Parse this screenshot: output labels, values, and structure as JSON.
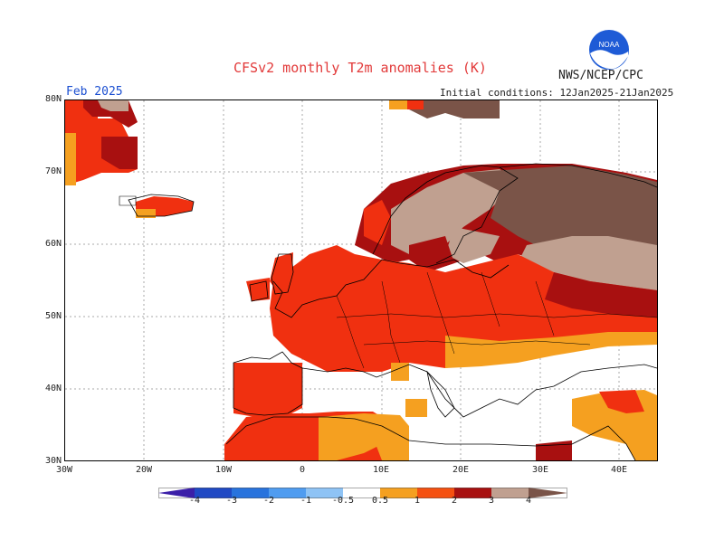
{
  "title": "CFSv2 monthly T2m anomalies (K)",
  "agency": "NWS/NCEP/CPC",
  "month": "Feb 2025",
  "initial_conditions": "Initial conditions: 12Jan2025-21Jan2025",
  "logo_text": "NOAA",
  "axes": {
    "lat_labels": [
      "80N",
      "70N",
      "60N",
      "50N",
      "40N",
      "30N"
    ],
    "lon_labels": [
      "30W",
      "20W",
      "10W",
      "0",
      "10E",
      "20E",
      "30E",
      "40E"
    ]
  },
  "colorbar": {
    "labels": [
      "-4",
      "-3",
      "-2",
      "-1",
      "-0.5",
      "0.5",
      "1",
      "2",
      "3",
      "4"
    ],
    "colors": [
      "#3b1fa8",
      "#2049c4",
      "#2873dd",
      "#4f9cf0",
      "#8ec3f5",
      "#ffffff",
      "#f5a020",
      "#f55010",
      "#f03010",
      "#a81010",
      "#c0a090",
      "#7a5448"
    ]
  }
}
